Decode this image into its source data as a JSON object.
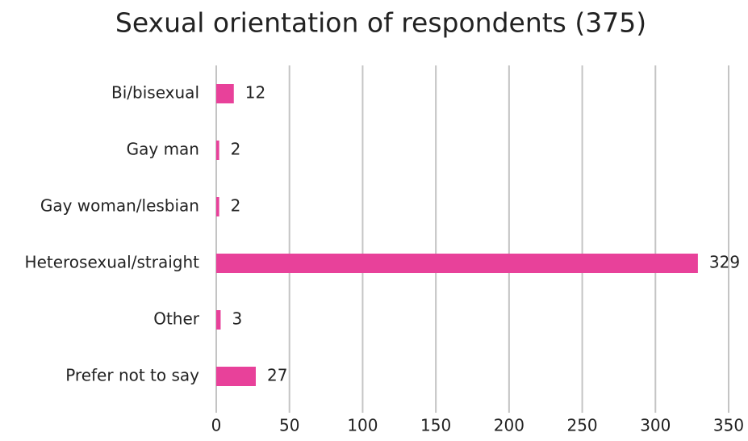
{
  "chart_data": {
    "type": "bar",
    "orientation": "horizontal",
    "title": "Sexual orientation of respondents (375)",
    "categories": [
      "Bi/bisexual",
      "Gay man",
      "Gay woman/lesbian",
      "Heterosexual/straight",
      "Other",
      "Prefer not to say"
    ],
    "values": [
      12,
      2,
      2,
      329,
      3,
      27
    ],
    "color": "#e8419a",
    "xlim": [
      0,
      350
    ],
    "xticks": [
      0,
      50,
      100,
      150,
      200,
      250,
      300,
      350
    ],
    "grid": true,
    "data_labels": true
  }
}
